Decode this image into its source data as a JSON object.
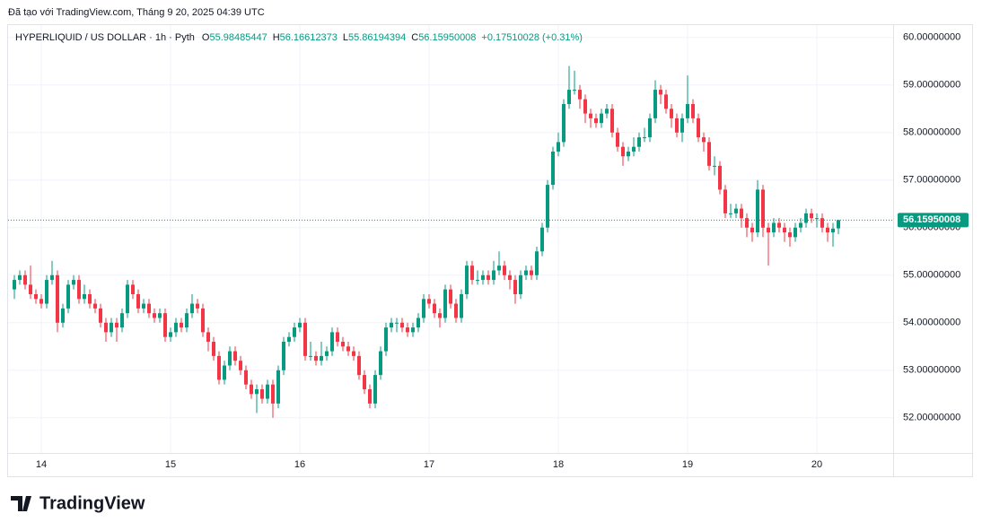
{
  "header": {
    "caption": "Đã tạo với TradingView.com, Tháng 9 20, 2025 04:39 UTC"
  },
  "brand": "TradingView",
  "chart_data": {
    "type": "candlestick",
    "title": "HYPERLIQUID / US DOLLAR · 1h · Pyth",
    "ohlc_letters": [
      "O",
      "H",
      "L",
      "C"
    ],
    "change_label": "+0.17510028 (+0.31%)",
    "up_color": "#089981",
    "down_color": "#f23645",
    "grid": true,
    "ylim": [
      51.26,
      60.26
    ],
    "yticks": [
      {
        "value": 52,
        "label": "52.00000000"
      },
      {
        "value": 53,
        "label": "53.00000000"
      },
      {
        "value": 54,
        "label": "54.00000000"
      },
      {
        "value": 55,
        "label": "55.00000000"
      },
      {
        "value": 56,
        "label": "56.00000000"
      },
      {
        "value": 57,
        "label": "57.00000000"
      },
      {
        "value": 58,
        "label": "58.00000000"
      },
      {
        "value": 59,
        "label": "59.00000000"
      },
      {
        "value": 60,
        "label": "60.00000000"
      }
    ],
    "categories": [
      null,
      null,
      null,
      null,
      null,
      "14",
      null,
      null,
      null,
      null,
      null,
      null,
      null,
      null,
      null,
      null,
      null,
      null,
      null,
      null,
      null,
      null,
      null,
      null,
      null,
      null,
      null,
      null,
      null,
      "15",
      null,
      null,
      null,
      null,
      null,
      null,
      null,
      null,
      null,
      null,
      null,
      null,
      null,
      null,
      null,
      null,
      null,
      null,
      null,
      null,
      null,
      null,
      null,
      "16",
      null,
      null,
      null,
      null,
      null,
      null,
      null,
      null,
      null,
      null,
      null,
      null,
      null,
      null,
      null,
      null,
      null,
      null,
      null,
      null,
      null,
      null,
      null,
      "17",
      null,
      null,
      null,
      null,
      null,
      null,
      null,
      null,
      null,
      null,
      null,
      null,
      null,
      null,
      null,
      null,
      null,
      null,
      null,
      null,
      null,
      null,
      null,
      "18",
      null,
      null,
      null,
      null,
      null,
      null,
      null,
      null,
      null,
      null,
      null,
      null,
      null,
      null,
      null,
      null,
      null,
      null,
      null,
      null,
      null,
      null,
      null,
      "19",
      null,
      null,
      null,
      null,
      null,
      null,
      null,
      null,
      null,
      null,
      null,
      null,
      null,
      null,
      null,
      null,
      null,
      null,
      null,
      null,
      null,
      null,
      null,
      "20",
      null,
      null,
      null,
      null
    ],
    "open": [
      54.7,
      54.9,
      55.0,
      54.8,
      54.6,
      54.5,
      54.4,
      54.9,
      55.0,
      54.0,
      54.3,
      54.8,
      54.9,
      54.5,
      54.6,
      54.4,
      54.3,
      54.0,
      53.8,
      54.0,
      53.9,
      54.2,
      54.8,
      54.6,
      54.3,
      54.4,
      54.2,
      54.1,
      54.2,
      53.7,
      53.8,
      54.0,
      53.9,
      54.2,
      54.4,
      54.3,
      53.8,
      53.6,
      53.3,
      52.8,
      53.1,
      53.4,
      53.2,
      53.0,
      52.7,
      52.5,
      52.6,
      52.4,
      52.7,
      52.3,
      53.0,
      53.6,
      53.7,
      53.9,
      54.0,
      53.3,
      53.3,
      53.2,
      53.3,
      53.4,
      53.8,
      53.6,
      53.5,
      53.4,
      53.3,
      52.9,
      52.6,
      52.3,
      52.9,
      53.4,
      53.9,
      54.0,
      54.0,
      53.9,
      53.8,
      53.9,
      54.1,
      54.5,
      54.4,
      54.2,
      54.1,
      54.7,
      54.4,
      54.1,
      54.6,
      55.2,
      54.9,
      54.9,
      55.0,
      54.9,
      55.1,
      55.2,
      55.0,
      54.9,
      54.6,
      55.0,
      55.1,
      55.0,
      55.5,
      56.0,
      56.9,
      57.6,
      57.8,
      58.6,
      58.9,
      58.9,
      58.7,
      58.4,
      58.3,
      58.2,
      58.4,
      58.5,
      58.0,
      57.7,
      57.5,
      57.6,
      57.7,
      57.9,
      57.9,
      58.3,
      58.9,
      58.8,
      58.5,
      58.3,
      58.0,
      58.3,
      58.6,
      58.3,
      57.9,
      57.8,
      57.3,
      57.3,
      56.8,
      56.3,
      56.3,
      56.4,
      56.2,
      56.0,
      55.9,
      56.8,
      56.0,
      55.9,
      56.1,
      56.0,
      55.9,
      55.8,
      56.0,
      56.1,
      56.3,
      56.2,
      56.2,
      56.0,
      55.9,
      55.98485447
    ],
    "high": [
      55.0,
      55.1,
      55.1,
      55.2,
      54.7,
      54.6,
      55.0,
      55.3,
      55.1,
      54.4,
      54.9,
      55.0,
      55.0,
      54.8,
      54.7,
      54.5,
      54.4,
      54.1,
      54.1,
      54.1,
      54.3,
      54.9,
      54.9,
      54.7,
      54.5,
      54.5,
      54.3,
      54.3,
      54.3,
      53.9,
      54.1,
      54.1,
      54.3,
      54.6,
      54.5,
      54.4,
      53.9,
      53.7,
      53.4,
      53.2,
      53.5,
      53.5,
      53.3,
      53.1,
      52.8,
      52.7,
      52.7,
      52.8,
      52.8,
      53.1,
      53.7,
      53.8,
      54.0,
      54.1,
      54.1,
      53.6,
      53.4,
      53.6,
      53.5,
      53.9,
      53.9,
      53.7,
      53.6,
      53.5,
      53.4,
      53.0,
      52.7,
      53.0,
      53.5,
      54.0,
      54.1,
      54.1,
      54.1,
      54.0,
      54.0,
      54.2,
      54.6,
      54.6,
      54.5,
      54.3,
      54.8,
      54.8,
      54.5,
      54.7,
      55.3,
      55.3,
      55.1,
      55.1,
      55.1,
      55.3,
      55.5,
      55.3,
      55.1,
      55.0,
      55.1,
      55.2,
      55.2,
      55.6,
      56.1,
      57.0,
      57.7,
      58.0,
      58.7,
      59.4,
      59.3,
      59.0,
      58.8,
      58.5,
      58.4,
      58.5,
      58.6,
      58.6,
      58.1,
      57.8,
      57.7,
      57.9,
      58.0,
      58.1,
      58.4,
      59.1,
      59.0,
      58.9,
      58.6,
      58.4,
      58.4,
      59.2,
      58.7,
      58.4,
      58.0,
      57.9,
      57.5,
      57.4,
      56.9,
      56.5,
      56.5,
      56.5,
      56.3,
      56.1,
      57.0,
      56.9,
      56.1,
      56.2,
      56.2,
      56.1,
      56.0,
      56.1,
      56.2,
      56.4,
      56.4,
      56.3,
      56.3,
      56.1,
      56.1,
      56.16612373
    ],
    "low": [
      54.5,
      54.8,
      54.7,
      54.5,
      54.4,
      54.3,
      54.3,
      54.8,
      53.8,
      53.9,
      54.2,
      54.7,
      54.4,
      54.4,
      54.3,
      54.2,
      53.9,
      53.6,
      53.7,
      53.6,
      53.8,
      54.1,
      54.5,
      54.2,
      54.2,
      54.1,
      54.0,
      54.0,
      53.6,
      53.6,
      53.7,
      53.8,
      53.8,
      54.1,
      54.2,
      53.7,
      53.4,
      53.2,
      52.7,
      52.7,
      53.0,
      53.1,
      52.9,
      52.6,
      52.4,
      52.1,
      52.3,
      52.3,
      52.0,
      52.2,
      52.9,
      53.5,
      53.6,
      53.8,
      53.2,
      53.2,
      53.1,
      53.1,
      53.2,
      53.3,
      53.5,
      53.4,
      53.3,
      53.2,
      52.8,
      52.5,
      52.2,
      52.2,
      52.8,
      53.3,
      53.8,
      53.8,
      53.8,
      53.7,
      53.7,
      53.8,
      54.0,
      54.3,
      54.1,
      53.9,
      54.0,
      54.3,
      54.0,
      54.0,
      54.5,
      54.8,
      54.8,
      54.8,
      54.8,
      54.8,
      55.0,
      54.9,
      54.7,
      54.4,
      54.5,
      54.9,
      54.9,
      54.9,
      55.4,
      55.9,
      56.8,
      57.5,
      57.7,
      58.5,
      58.8,
      58.5,
      58.2,
      58.1,
      58.1,
      58.1,
      58.3,
      57.9,
      57.6,
      57.3,
      57.4,
      57.5,
      57.6,
      57.8,
      57.8,
      58.2,
      58.6,
      58.4,
      58.1,
      57.9,
      57.8,
      58.2,
      58.2,
      57.8,
      57.6,
      57.2,
      57.1,
      56.7,
      56.2,
      56.2,
      56.2,
      56.0,
      55.8,
      55.7,
      55.8,
      55.8,
      55.2,
      55.8,
      55.9,
      55.7,
      55.6,
      55.7,
      55.9,
      56.0,
      56.1,
      56.0,
      55.9,
      55.7,
      55.6,
      55.86194394
    ],
    "close": [
      54.9,
      55.0,
      54.8,
      54.6,
      54.5,
      54.4,
      54.9,
      55.0,
      54.0,
      54.3,
      54.8,
      54.9,
      54.5,
      54.6,
      54.4,
      54.3,
      54.0,
      53.8,
      54.0,
      53.9,
      54.2,
      54.8,
      54.6,
      54.3,
      54.4,
      54.2,
      54.1,
      54.2,
      53.7,
      53.8,
      54.0,
      53.9,
      54.2,
      54.4,
      54.3,
      53.8,
      53.6,
      53.3,
      52.8,
      53.1,
      53.4,
      53.2,
      53.0,
      52.7,
      52.5,
      52.6,
      52.4,
      52.7,
      52.3,
      53.0,
      53.6,
      53.7,
      53.9,
      54.0,
      53.3,
      53.3,
      53.2,
      53.3,
      53.4,
      53.8,
      53.6,
      53.5,
      53.4,
      53.3,
      52.9,
      52.6,
      52.3,
      52.9,
      53.4,
      53.9,
      54.0,
      54.0,
      53.9,
      53.8,
      53.9,
      54.1,
      54.5,
      54.4,
      54.2,
      54.1,
      54.7,
      54.4,
      54.1,
      54.6,
      55.2,
      54.9,
      54.9,
      55.0,
      54.9,
      55.1,
      55.2,
      55.0,
      54.9,
      54.6,
      55.0,
      55.1,
      55.0,
      55.5,
      56.0,
      56.9,
      57.6,
      57.8,
      58.6,
      58.9,
      58.9,
      58.7,
      58.4,
      58.3,
      58.2,
      58.4,
      58.5,
      58.0,
      57.7,
      57.5,
      57.6,
      57.7,
      57.9,
      57.9,
      58.3,
      58.9,
      58.8,
      58.5,
      58.3,
      58.0,
      58.3,
      58.6,
      58.3,
      57.9,
      57.8,
      57.3,
      57.3,
      56.8,
      56.3,
      56.3,
      56.4,
      56.2,
      56.0,
      55.9,
      56.8,
      56.0,
      55.9,
      56.1,
      56.0,
      55.9,
      55.8,
      56.0,
      56.1,
      56.3,
      56.2,
      56.2,
      56.0,
      55.9,
      55.98,
      56.15950008
    ]
  }
}
